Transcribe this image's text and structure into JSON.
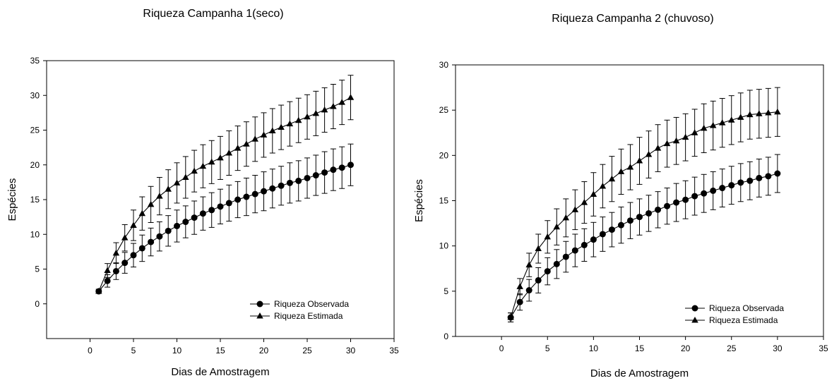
{
  "chart_data": [
    {
      "type": "line",
      "title": "Riqueza Campanha 1(seco)",
      "xlabel": "Dias de Amostragem",
      "ylabel": "Espécies",
      "xlim": [
        -5,
        35
      ],
      "ylim": [
        -5,
        35
      ],
      "xticks": [
        0,
        5,
        10,
        15,
        20,
        25,
        30,
        35
      ],
      "yticks": [
        0,
        5,
        10,
        15,
        20,
        25,
        30,
        35
      ],
      "legend_position": "bottom-right",
      "x": [
        1,
        2,
        3,
        4,
        5,
        6,
        7,
        8,
        9,
        10,
        11,
        12,
        13,
        14,
        15,
        16,
        17,
        18,
        19,
        20,
        21,
        22,
        23,
        24,
        25,
        26,
        27,
        28,
        29,
        30
      ],
      "series": [
        {
          "name": "Riqueza Observada",
          "marker": "circle",
          "values": [
            1.8,
            3.3,
            4.7,
            5.9,
            7.0,
            8.0,
            8.9,
            9.7,
            10.5,
            11.2,
            11.8,
            12.4,
            13.0,
            13.5,
            14.0,
            14.5,
            15.0,
            15.4,
            15.8,
            16.2,
            16.6,
            17.0,
            17.4,
            17.7,
            18.1,
            18.5,
            18.9,
            19.3,
            19.6,
            20.0
          ],
          "err": [
            0.3,
            0.9,
            1.2,
            1.5,
            1.7,
            1.9,
            2.0,
            2.1,
            2.2,
            2.3,
            2.3,
            2.4,
            2.4,
            2.5,
            2.5,
            2.6,
            2.6,
            2.7,
            2.7,
            2.8,
            2.8,
            2.8,
            2.9,
            2.9,
            2.9,
            2.9,
            3.0,
            3.0,
            3.0,
            3.0
          ]
        },
        {
          "name": "Riqueza Estimada",
          "marker": "triangle",
          "values": [
            1.8,
            4.8,
            7.3,
            9.5,
            11.3,
            13.0,
            14.3,
            15.5,
            16.5,
            17.4,
            18.2,
            19.1,
            19.8,
            20.4,
            21.0,
            21.7,
            22.4,
            23.0,
            23.7,
            24.3,
            24.9,
            25.4,
            25.9,
            26.4,
            26.9,
            27.4,
            27.9,
            28.4,
            29.0,
            29.7
          ],
          "err": [
            0.3,
            1.0,
            1.5,
            1.9,
            2.2,
            2.4,
            2.6,
            2.7,
            2.8,
            2.9,
            3.0,
            3.0,
            3.1,
            3.1,
            3.1,
            3.2,
            3.2,
            3.2,
            3.2,
            3.2,
            3.2,
            3.2,
            3.2,
            3.2,
            3.2,
            3.2,
            3.2,
            3.2,
            3.2,
            3.2
          ]
        }
      ]
    },
    {
      "type": "line",
      "title": "Riqueza Campanha 2 (chuvoso)",
      "xlabel": "Dias de Amostragem",
      "ylabel": "Espécies",
      "xlim": [
        -5,
        35
      ],
      "ylim": [
        0,
        30
      ],
      "xticks": [
        0,
        5,
        10,
        15,
        20,
        25,
        30,
        35
      ],
      "yticks": [
        0,
        5,
        10,
        15,
        20,
        25,
        30
      ],
      "legend_position": "bottom-right",
      "x": [
        1,
        2,
        3,
        4,
        5,
        6,
        7,
        8,
        9,
        10,
        11,
        12,
        13,
        14,
        15,
        16,
        17,
        18,
        19,
        20,
        21,
        22,
        23,
        24,
        25,
        26,
        27,
        28,
        29,
        30
      ],
      "series": [
        {
          "name": "Riqueza Observada",
          "marker": "circle",
          "values": [
            2.1,
            3.8,
            5.1,
            6.2,
            7.2,
            8.0,
            8.8,
            9.5,
            10.1,
            10.7,
            11.3,
            11.8,
            12.3,
            12.8,
            13.2,
            13.6,
            14.0,
            14.4,
            14.8,
            15.1,
            15.5,
            15.8,
            16.1,
            16.4,
            16.7,
            17.0,
            17.2,
            17.5,
            17.7,
            18.0
          ],
          "err": [
            0.5,
            0.9,
            1.2,
            1.4,
            1.5,
            1.6,
            1.7,
            1.8,
            1.8,
            1.9,
            1.9,
            1.9,
            2.0,
            2.0,
            2.0,
            2.0,
            2.0,
            2.0,
            2.1,
            2.1,
            2.1,
            2.1,
            2.1,
            2.1,
            2.1,
            2.1,
            2.1,
            2.1,
            2.1,
            2.1
          ]
        },
        {
          "name": "Riqueza Estimada",
          "marker": "triangle",
          "values": [
            2.1,
            5.5,
            7.9,
            9.7,
            11.0,
            12.1,
            13.1,
            14.0,
            14.8,
            15.7,
            16.6,
            17.4,
            18.2,
            18.7,
            19.4,
            20.1,
            20.8,
            21.3,
            21.6,
            22.0,
            22.5,
            23.0,
            23.3,
            23.6,
            23.9,
            24.2,
            24.5,
            24.6,
            24.7,
            24.8
          ],
          "err": [
            0.5,
            0.9,
            1.3,
            1.6,
            1.8,
            2.0,
            2.1,
            2.2,
            2.3,
            2.4,
            2.4,
            2.5,
            2.5,
            2.5,
            2.6,
            2.6,
            2.6,
            2.6,
            2.6,
            2.6,
            2.6,
            2.7,
            2.7,
            2.7,
            2.7,
            2.7,
            2.7,
            2.7,
            2.7,
            2.7
          ]
        }
      ]
    }
  ]
}
